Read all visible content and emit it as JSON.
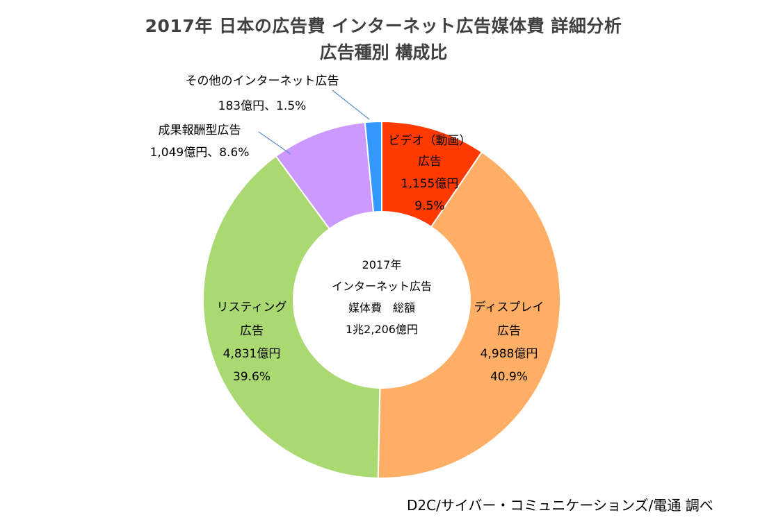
{
  "chart_data": {
    "type": "pie",
    "variant": "donut",
    "title": "2017年 日本の広告費 インターネット広告媒体費 詳細分析",
    "subtitle": "広告種別 構成比",
    "center_label": [
      "2017年",
      "インターネット広告",
      "媒体費　総額",
      "1兆2,206億円"
    ],
    "start_angle": "12 o'clock",
    "direction": "clockwise",
    "slices": [
      {
        "name": "ビデオ（動画）広告",
        "label_lines": [
          "ビデオ（動画）",
          "広告",
          "1,155億円",
          "9.5%"
        ],
        "value_oku_yen": 1155,
        "percent": 9.5,
        "color": "#FF3A00",
        "label_position": "inside"
      },
      {
        "name": "ディスプレイ広告",
        "label_lines": [
          "ディスプレイ",
          "広告",
          "4,988億円",
          "40.9%"
        ],
        "value_oku_yen": 4988,
        "percent": 40.9,
        "color": "#FFAE66",
        "label_position": "inside"
      },
      {
        "name": "リスティング広告",
        "label_lines": [
          "リスティング",
          "広告",
          "4,831億円",
          "39.6%"
        ],
        "value_oku_yen": 4831,
        "percent": 39.6,
        "color": "#A9D970",
        "label_position": "inside"
      },
      {
        "name": "成果報酬型広告",
        "label_lines": [
          "成果報酬型広告",
          "1,049億円、8.6%"
        ],
        "value_oku_yen": 1049,
        "percent": 8.6,
        "color": "#CC99FF",
        "label_position": "outside-leader"
      },
      {
        "name": "その他のインターネット広告",
        "label_lines": [
          "その他のインターネット広告",
          "183億円、1.5%"
        ],
        "value_oku_yen": 183,
        "percent": 1.5,
        "color": "#3399FF",
        "label_position": "outside-leader"
      }
    ],
    "unit": "億円"
  },
  "footer": {
    "source": "D2C/サイバー・コミュニケーションズ/電通 調べ"
  }
}
